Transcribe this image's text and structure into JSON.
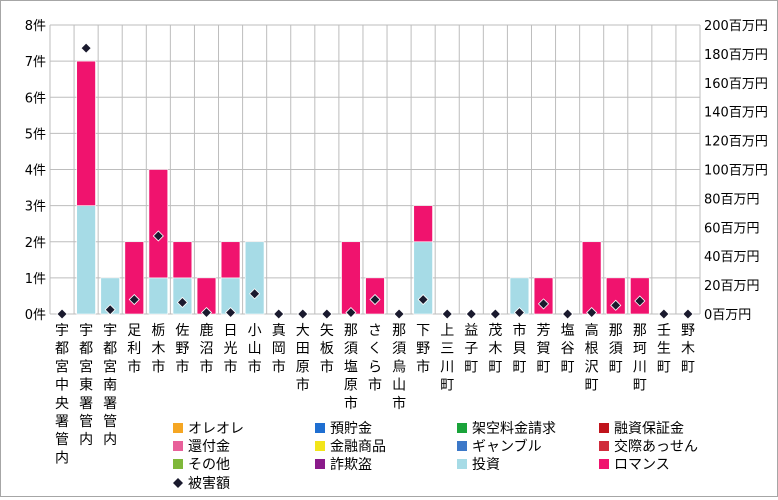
{
  "chart_data": {
    "type": "bar",
    "stacked": true,
    "categories": [
      "宇都宮中央署管内",
      "宇都宮東署管内",
      "宇都宮南署管内",
      "足利市",
      "栃木市",
      "佐野市",
      "鹿沼市",
      "日光市",
      "小山市",
      "真岡市",
      "大田原市",
      "矢板市",
      "那須塩原市",
      "さくら市",
      "那須烏山市",
      "下野市",
      "上三川町",
      "益子町",
      "茂木町",
      "市貝町",
      "芳賀町",
      "塩谷町",
      "高根沢町",
      "那須町",
      "那珂川町",
      "壬生町",
      "野木町"
    ],
    "y_left": {
      "ticks": [
        "0件",
        "1件",
        "2件",
        "3件",
        "4件",
        "5件",
        "6件",
        "7件",
        "8件"
      ],
      "min": 0,
      "max": 8
    },
    "y_right": {
      "ticks": [
        "0百万円",
        "20百万円",
        "40百万円",
        "60百万円",
        "80百万円",
        "100百万円",
        "120百万円",
        "140百万円",
        "160百万円",
        "180百万円",
        "200百万円"
      ],
      "min": 0,
      "max": 200
    },
    "grid": true,
    "legend_position": "bottom",
    "series": [
      {
        "name": "オレオレ",
        "color": "#f5a623",
        "values": [
          0,
          0,
          0,
          0,
          0,
          0,
          0,
          0,
          0,
          0,
          0,
          0,
          0,
          0,
          0,
          0,
          0,
          0,
          0,
          0,
          0,
          0,
          0,
          0,
          0,
          0,
          0
        ]
      },
      {
        "name": "預貯金",
        "color": "#1f6fd1",
        "values": [
          0,
          0,
          0,
          0,
          0,
          0,
          0,
          0,
          0,
          0,
          0,
          0,
          0,
          0,
          0,
          0,
          0,
          0,
          0,
          0,
          0,
          0,
          0,
          0,
          0,
          0,
          0
        ]
      },
      {
        "name": "架空料金請求",
        "color": "#1aa33a",
        "values": [
          0,
          0,
          0,
          0,
          0,
          0,
          0,
          0,
          0,
          0,
          0,
          0,
          0,
          0,
          0,
          0,
          0,
          0,
          0,
          0,
          0,
          0,
          0,
          0,
          0,
          0,
          0
        ]
      },
      {
        "name": "融資保証金",
        "color": "#c0141c",
        "values": [
          0,
          0,
          0,
          0,
          0,
          0,
          0,
          0,
          0,
          0,
          0,
          0,
          0,
          0,
          0,
          0,
          0,
          0,
          0,
          0,
          0,
          0,
          0,
          0,
          0,
          0,
          0
        ]
      },
      {
        "name": "還付金",
        "color": "#e8609a",
        "values": [
          0,
          0,
          0,
          0,
          0,
          0,
          0,
          0,
          0,
          0,
          0,
          0,
          0,
          0,
          0,
          0,
          0,
          0,
          0,
          0,
          0,
          0,
          0,
          0,
          0,
          0,
          0
        ]
      },
      {
        "name": "金融商品",
        "color": "#f2e51a",
        "values": [
          0,
          0,
          0,
          0,
          0,
          0,
          0,
          0,
          0,
          0,
          0,
          0,
          0,
          0,
          0,
          0,
          0,
          0,
          0,
          0,
          0,
          0,
          0,
          0,
          0,
          0,
          0
        ]
      },
      {
        "name": "ギャンブル",
        "color": "#3c78c8",
        "values": [
          0,
          0,
          0,
          0,
          0,
          0,
          0,
          0,
          0,
          0,
          0,
          0,
          0,
          0,
          0,
          0,
          0,
          0,
          0,
          0,
          0,
          0,
          0,
          0,
          0,
          0,
          0
        ]
      },
      {
        "name": "交際あっせん",
        "color": "#d02c3c",
        "values": [
          0,
          0,
          0,
          0,
          0,
          0,
          0,
          0,
          0,
          0,
          0,
          0,
          0,
          0,
          0,
          0,
          0,
          0,
          0,
          0,
          0,
          0,
          0,
          0,
          0,
          0,
          0
        ]
      },
      {
        "name": "その他",
        "color": "#7fb83a",
        "values": [
          0,
          0,
          0,
          0,
          0,
          0,
          0,
          0,
          0,
          0,
          0,
          0,
          0,
          0,
          0,
          0,
          0,
          0,
          0,
          0,
          0,
          0,
          0,
          0,
          0,
          0,
          0
        ]
      },
      {
        "name": "詐欺盗",
        "color": "#8a1a8a",
        "values": [
          0,
          0,
          0,
          0,
          0,
          0,
          0,
          0,
          0,
          0,
          0,
          0,
          0,
          0,
          0,
          0,
          0,
          0,
          0,
          0,
          0,
          0,
          0,
          0,
          0,
          0,
          0
        ]
      },
      {
        "name": "投資",
        "color": "#a6dbe6",
        "values": [
          0,
          3,
          1,
          0,
          1,
          1,
          0,
          1,
          2,
          0,
          0,
          0,
          0,
          0,
          0,
          2,
          0,
          0,
          0,
          1,
          0,
          0,
          0,
          0,
          0,
          0,
          0
        ]
      },
      {
        "name": "ロマンス",
        "color": "#f0136e",
        "values": [
          0,
          4,
          0,
          2,
          3,
          1,
          1,
          1,
          0,
          0,
          0,
          0,
          2,
          1,
          0,
          1,
          0,
          0,
          0,
          0,
          1,
          0,
          2,
          1,
          1,
          0,
          0
        ]
      }
    ],
    "line_series": {
      "name": "被害額",
      "axis": "right",
      "marker": "diamond",
      "values": [
        0,
        184,
        3,
        10,
        54,
        8,
        1,
        1,
        14,
        0,
        0,
        0,
        1,
        10,
        0,
        10,
        0,
        0,
        0,
        1,
        7,
        0,
        1,
        6,
        9,
        0,
        0
      ]
    },
    "legend_rows": [
      [
        "オレオレ",
        "預貯金",
        "架空料金請求",
        "融資保証金"
      ],
      [
        "還付金",
        "金融商品",
        "ギャンブル",
        "交際あっせん"
      ],
      [
        "その他",
        "詐欺盗",
        "投資",
        "ロマンス"
      ],
      [
        "被害額"
      ]
    ]
  }
}
